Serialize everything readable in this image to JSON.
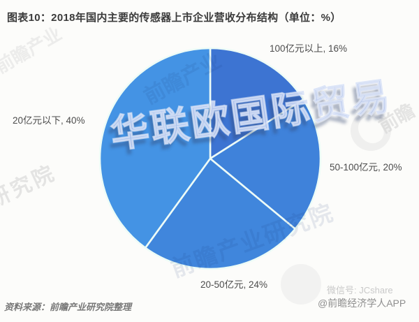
{
  "header": {
    "title": "图表10：2018年国内主要的传感器上市企业营收分布结构（单位：%）"
  },
  "chart_data": {
    "type": "pie",
    "title": "2018年国内主要的传感器上市企业营收分布结构",
    "unit": "%",
    "start_angle_deg": 0,
    "direction": "clockwise",
    "separator_color": "#edfcf7",
    "legend_position": "outside-labels",
    "slices": [
      {
        "label": "100亿元以上",
        "value": 16,
        "color": "#3d74d2",
        "label_text": "100亿元以上, 16%"
      },
      {
        "label": "50-100亿元",
        "value": 20,
        "color": "#3f82da",
        "label_text": "50-100亿元, 20%"
      },
      {
        "label": "20-50亿元",
        "value": 24,
        "color": "#4086dc",
        "label_text": "20-50亿元, 24%"
      },
      {
        "label": "20亿元以下",
        "value": 40,
        "color": "#4493e4",
        "label_text": "20亿元以下, 40%"
      }
    ]
  },
  "watermarks": {
    "center": "华联欧国际贸易",
    "top_left_fragment": "前瞻产业",
    "left_fragment": "研究院",
    "right_logo_text": "前瞻",
    "pie_top_fragment": "前瞻产业",
    "pie_bottom_fragment": "前瞻产业研究院",
    "wechat": "微信号: JCshare",
    "credit": "@前瞻经济学人APP"
  },
  "footer": {
    "source": "资料来源：前瞻产业研究院整理"
  }
}
